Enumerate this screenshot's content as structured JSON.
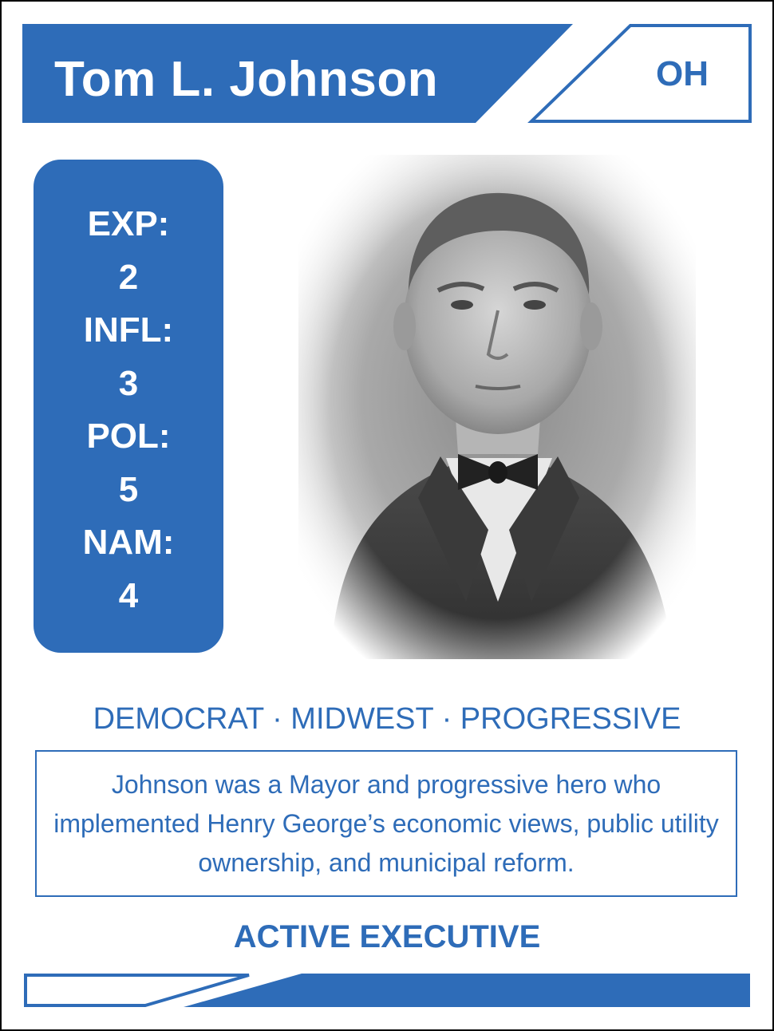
{
  "card": {
    "name": "Tom L. Johnson",
    "state": "OH",
    "stats": [
      {
        "label": "EXP:",
        "value": "2"
      },
      {
        "label": "INFL:",
        "value": "3"
      },
      {
        "label": "POL:",
        "value": "5"
      },
      {
        "label": "NAM:",
        "value": "4"
      }
    ],
    "tags": "DEMOCRAT · MIDWEST · PROGRESSIVE",
    "description": "Johnson was a Mayor and progressive hero who implemented Henry George’s economic views, public utility ownership, and municipal reform.",
    "role": "ACTIVE EXECUTIVE"
  },
  "colors": {
    "accent": "#2e6cb8",
    "background": "#ffffff"
  },
  "portrait": {
    "subject": "sepia-toned portrait photograph of a man in suit and bow tie"
  }
}
